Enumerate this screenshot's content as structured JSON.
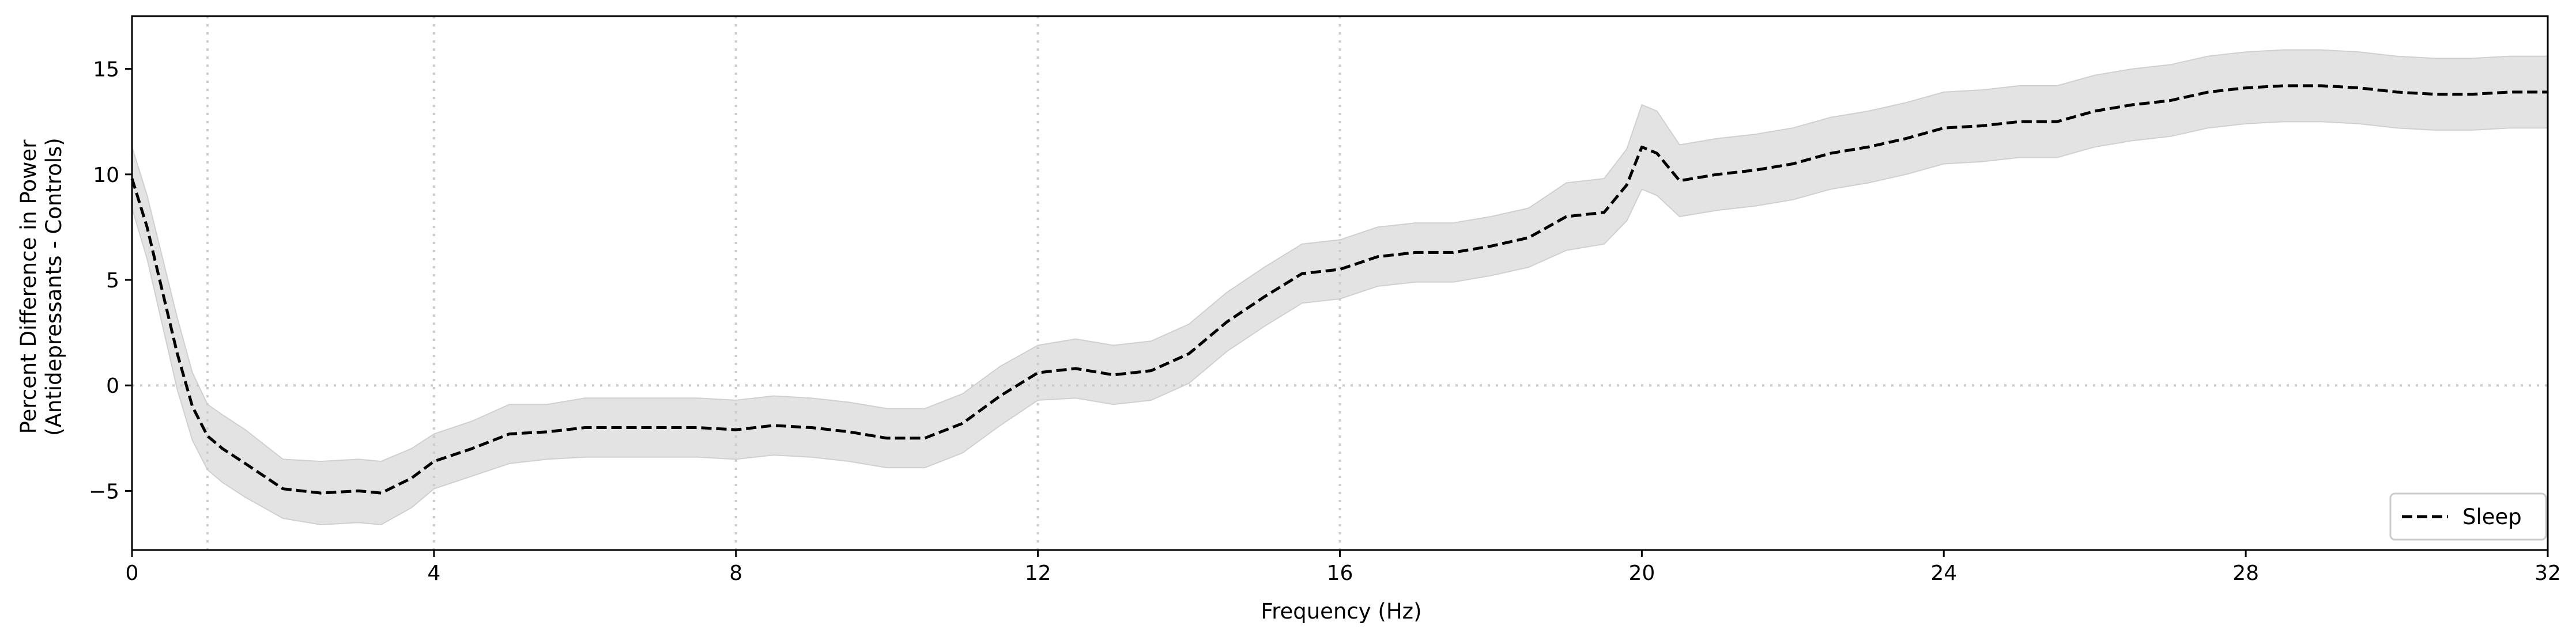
{
  "chart_data": {
    "type": "line",
    "title": "",
    "xlabel": "Frequency (Hz)",
    "ylabel_lines": [
      "Percent Difference in Power",
      "(Antidepressants - Controls)"
    ],
    "xlim": [
      0,
      32
    ],
    "ylim": [
      -7.8,
      17.5
    ],
    "x_ticks": [
      0,
      4,
      8,
      12,
      16,
      20,
      24,
      28,
      32
    ],
    "y_ticks": [
      -5,
      0,
      5,
      10,
      15
    ],
    "vertical_reference_lines_x": [
      1,
      4,
      8,
      12,
      16
    ],
    "horizontal_reference_line_y": 0,
    "grid": false,
    "legend": {
      "position": "lower-right",
      "entries": [
        "Sleep"
      ]
    },
    "colors": {
      "line": "#000000",
      "band": "#e3e3e3",
      "reference": "#cccccc"
    },
    "series": [
      {
        "name": "Sleep",
        "style": "dashed",
        "x": [
          0,
          0.2,
          0.4,
          0.6,
          0.8,
          1.0,
          1.2,
          1.5,
          2.0,
          2.5,
          3.0,
          3.3,
          3.7,
          4.0,
          4.5,
          5.0,
          5.5,
          6.0,
          6.5,
          7.0,
          7.5,
          8.0,
          8.5,
          9.0,
          9.5,
          10.0,
          10.5,
          11.0,
          11.5,
          12.0,
          12.5,
          13.0,
          13.5,
          14.0,
          14.5,
          15.0,
          15.5,
          16.0,
          16.5,
          17.0,
          17.5,
          18.0,
          18.5,
          19.0,
          19.5,
          19.8,
          20.0,
          20.2,
          20.5,
          21.0,
          21.5,
          22.0,
          22.5,
          23.0,
          23.5,
          24.0,
          24.5,
          25.0,
          25.5,
          26.0,
          26.5,
          27.0,
          27.5,
          28.0,
          28.5,
          29.0,
          29.5,
          30.0,
          30.5,
          31.0,
          31.5,
          32.0
        ],
        "y": [
          9.8,
          7.5,
          4.5,
          1.5,
          -1.0,
          -2.4,
          -3.0,
          -3.7,
          -4.9,
          -5.1,
          -5.0,
          -5.1,
          -4.4,
          -3.6,
          -3.0,
          -2.3,
          -2.2,
          -2.0,
          -2.0,
          -2.0,
          -2.0,
          -2.1,
          -1.9,
          -2.0,
          -2.2,
          -2.5,
          -2.5,
          -1.8,
          -0.5,
          0.6,
          0.8,
          0.5,
          0.7,
          1.5,
          3.0,
          4.2,
          5.3,
          5.5,
          6.1,
          6.3,
          6.3,
          6.6,
          7.0,
          8.0,
          8.2,
          9.5,
          11.3,
          11.0,
          9.7,
          10.0,
          10.2,
          10.5,
          11.0,
          11.3,
          11.7,
          12.2,
          12.3,
          12.5,
          12.5,
          13.0,
          13.3,
          13.5,
          13.9,
          14.1,
          14.2,
          14.2,
          14.1,
          13.9,
          13.8,
          13.8,
          13.9,
          13.9
        ],
        "lower": [
          8.4,
          6.0,
          2.9,
          -0.2,
          -2.6,
          -4.0,
          -4.6,
          -5.3,
          -6.3,
          -6.6,
          -6.5,
          -6.6,
          -5.8,
          -4.9,
          -4.3,
          -3.7,
          -3.5,
          -3.4,
          -3.4,
          -3.4,
          -3.4,
          -3.5,
          -3.3,
          -3.4,
          -3.6,
          -3.9,
          -3.9,
          -3.2,
          -1.9,
          -0.7,
          -0.6,
          -0.9,
          -0.7,
          0.1,
          1.6,
          2.8,
          3.9,
          4.1,
          4.7,
          4.9,
          4.9,
          5.2,
          5.6,
          6.4,
          6.7,
          7.8,
          9.3,
          9.0,
          8.0,
          8.3,
          8.5,
          8.8,
          9.3,
          9.6,
          10.0,
          10.5,
          10.6,
          10.8,
          10.8,
          11.3,
          11.6,
          11.8,
          12.2,
          12.4,
          12.5,
          12.5,
          12.4,
          12.2,
          12.1,
          12.1,
          12.2,
          12.2
        ],
        "upper": [
          11.3,
          9.0,
          6.1,
          3.2,
          0.6,
          -0.9,
          -1.4,
          -2.1,
          -3.5,
          -3.6,
          -3.5,
          -3.6,
          -3.0,
          -2.3,
          -1.7,
          -0.9,
          -0.9,
          -0.6,
          -0.6,
          -0.6,
          -0.6,
          -0.7,
          -0.5,
          -0.6,
          -0.8,
          -1.1,
          -1.1,
          -0.4,
          0.9,
          1.9,
          2.2,
          1.9,
          2.1,
          2.9,
          4.4,
          5.6,
          6.7,
          6.9,
          7.5,
          7.7,
          7.7,
          8.0,
          8.4,
          9.6,
          9.8,
          11.2,
          13.3,
          13.0,
          11.4,
          11.7,
          11.9,
          12.2,
          12.7,
          13.0,
          13.4,
          13.9,
          14.0,
          14.2,
          14.2,
          14.7,
          15.0,
          15.2,
          15.6,
          15.8,
          15.9,
          15.9,
          15.8,
          15.6,
          15.5,
          15.5,
          15.6,
          15.6
        ]
      }
    ]
  }
}
